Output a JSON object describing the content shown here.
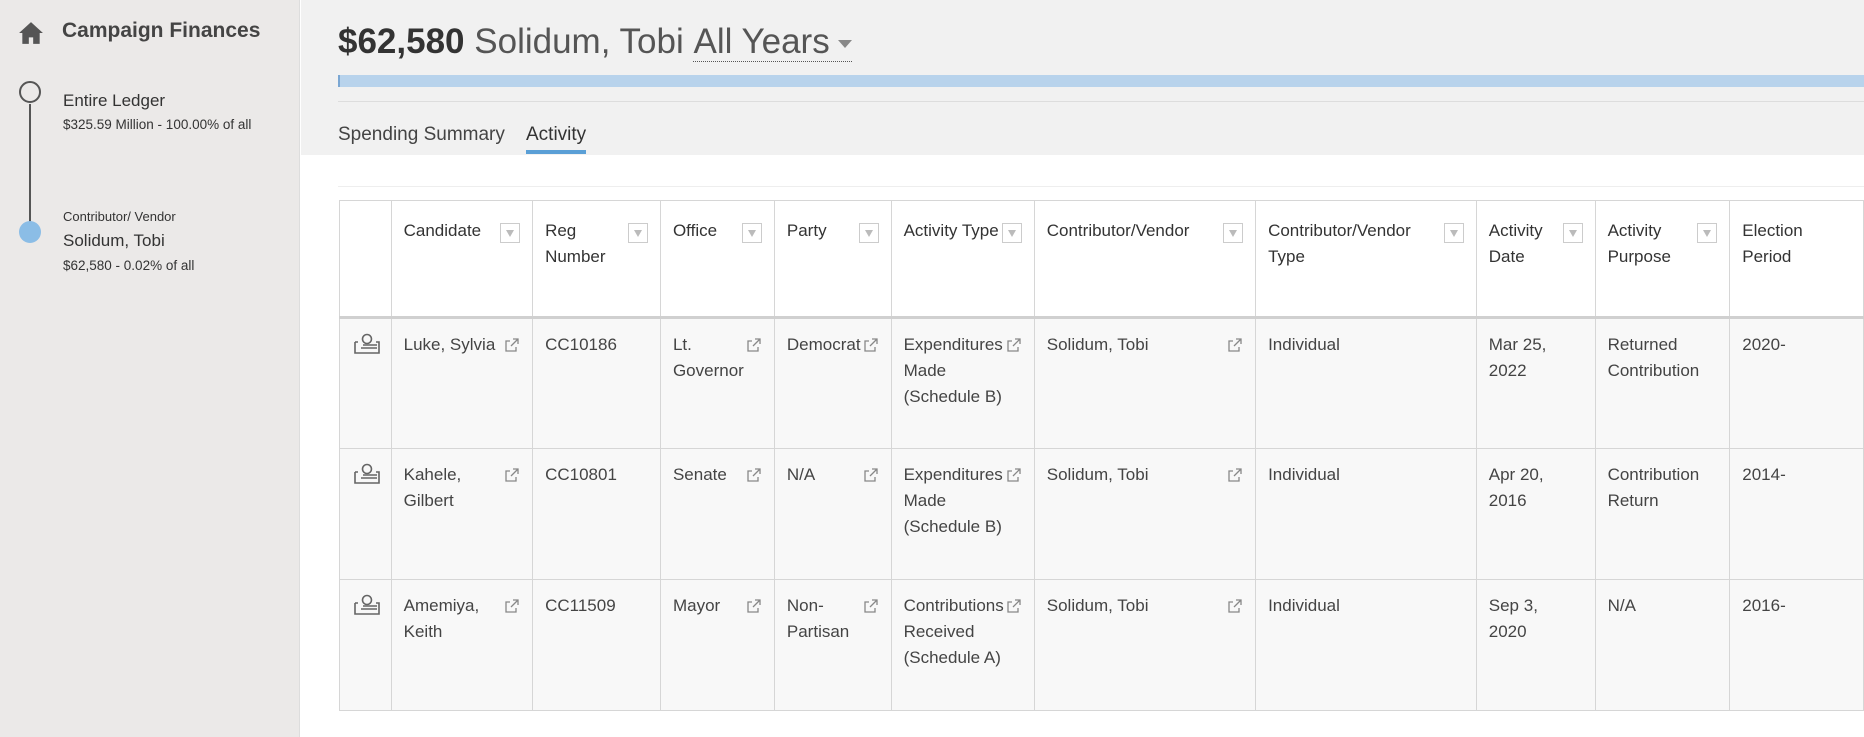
{
  "sidebar": {
    "brand": "Campaign Finances",
    "icon": "home-icon",
    "levels": [
      {
        "title": "Entire Ledger",
        "detail": "$325.59 Million - 100.00% of all"
      },
      {
        "label": "Contributor/ Vendor",
        "title": "Solidum, Tobi",
        "detail": "$62,580  - 0.02% of all"
      }
    ]
  },
  "header": {
    "amount": "$62,580",
    "name": "Solidum, Tobi",
    "years": "All Years",
    "progress_percent": 0.02
  },
  "tabs": [
    {
      "label": "Spending Summary",
      "active": false
    },
    {
      "label": "Activity",
      "active": true
    }
  ],
  "table": {
    "columns": [
      "Candidate",
      "Reg Number",
      "Office",
      "Party",
      "Activity Type",
      "Contributor/Vendor",
      "Contributor/Vendor Type",
      "Activity Date",
      "Activity Purpose",
      "Election Period"
    ],
    "rows": [
      {
        "candidate": "Luke, Sylvia",
        "reg": "CC10186",
        "office": "Lt. Governor",
        "party": "Democrat",
        "type": "Expenditures Made (Schedule B)",
        "vendor": "Solidum, Tobi",
        "vtype": "Individual",
        "date": "Mar 25, 2022",
        "purpose": "Returned Contribution",
        "period": "2020-"
      },
      {
        "candidate": "Kahele, Gilbert",
        "reg": "CC10801",
        "office": "Senate",
        "party": "N/A",
        "type": "Expenditures Made (Schedule B)",
        "vendor": "Solidum, Tobi",
        "vtype": "Individual",
        "date": "Apr 20, 2016",
        "purpose": "Contribution Return",
        "period": "2014-"
      },
      {
        "candidate": "Amemiya, Keith",
        "reg": "CC11509",
        "office": "Mayor",
        "party": "Non-Partisan",
        "type": "Contributions Received (Schedule A)",
        "vendor": "Solidum, Tobi",
        "vtype": "Individual",
        "date": "Sep 3, 2020",
        "purpose": "N/A",
        "period": "2016-"
      }
    ]
  },
  "colors": {
    "accent": "#5a9fd6",
    "progress": "#b8d3ec"
  }
}
